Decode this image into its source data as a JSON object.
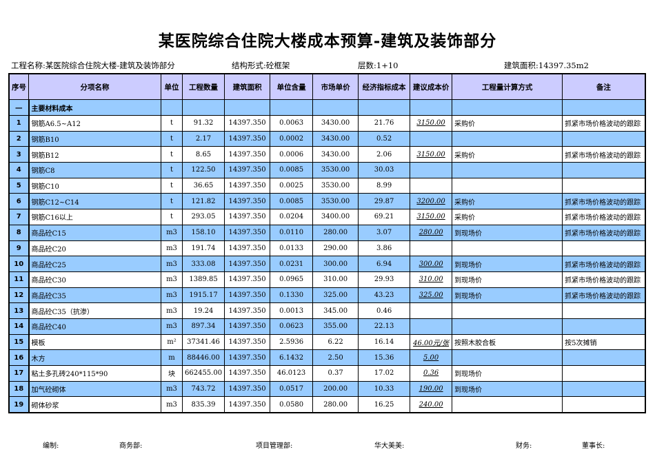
{
  "title": "某医院综合住院大楼成本预算-建筑及装饰部分",
  "info": {
    "project": "工程名称:某医院综合住院大楼-建筑及装饰部分",
    "structure": "结构形式:砼框架",
    "floors": "层数:1+10",
    "area": "建筑面积:14397.35m2"
  },
  "columns": [
    "序号",
    "分项名称",
    "单位",
    "工程数量",
    "建筑面积",
    "单位含量",
    "市场单价",
    "经济指标成本",
    "建议成本价",
    "工程量计算方式",
    "备注"
  ],
  "section": {
    "seq": "一",
    "name": "主要材料成本"
  },
  "rows": [
    {
      "seq": "1",
      "name": "钢筋A6.5~A12",
      "unit": "t",
      "qty": "91.32",
      "area": "14397.350",
      "content": "0.0063",
      "price": "3430.00",
      "index": "21.76",
      "suggest": "3150.00",
      "method": "采购价",
      "note": "抓紧市场价格波动的跟踪"
    },
    {
      "seq": "2",
      "name": "钢筋B10",
      "unit": "t",
      "qty": "2.17",
      "area": "14397.350",
      "content": "0.0002",
      "price": "3430.00",
      "index": "0.52",
      "suggest": "",
      "method": "",
      "note": ""
    },
    {
      "seq": "3",
      "name": "钢筋B12",
      "unit": "t",
      "qty": "8.65",
      "area": "14397.350",
      "content": "0.0006",
      "price": "3430.00",
      "index": "2.06",
      "suggest": "3150.00",
      "method": "采购价",
      "note": "抓紧市场价格波动的跟踪"
    },
    {
      "seq": "4",
      "name": "钢筋C8",
      "unit": "t",
      "qty": "122.50",
      "area": "14397.350",
      "content": "0.0085",
      "price": "3530.00",
      "index": "30.03",
      "suggest": "",
      "method": "",
      "note": ""
    },
    {
      "seq": "5",
      "name": "钢筋C10",
      "unit": "t",
      "qty": "36.65",
      "area": "14397.350",
      "content": "0.0025",
      "price": "3530.00",
      "index": "8.99",
      "suggest": "",
      "method": "",
      "note": ""
    },
    {
      "seq": "6",
      "name": "钢筋C12~C14",
      "unit": "t",
      "qty": "121.82",
      "area": "14397.350",
      "content": "0.0085",
      "price": "3530.00",
      "index": "29.87",
      "suggest": "3200.00",
      "method": "采购价",
      "note": "抓紧市场价格波动的跟踪"
    },
    {
      "seq": "7",
      "name": "钢筋C16以上",
      "unit": "t",
      "qty": "293.05",
      "area": "14397.350",
      "content": "0.0204",
      "price": "3400.00",
      "index": "69.21",
      "suggest": "3150.00",
      "method": "采购价",
      "note": "抓紧市场价格波动的跟踪"
    },
    {
      "seq": "8",
      "name": "商品砼C15",
      "unit": "m3",
      "qty": "158.10",
      "area": "14397.350",
      "content": "0.0110",
      "price": "280.00",
      "index": "3.07",
      "suggest": "280.00",
      "method": "到现场价",
      "note": "抓紧市场价格波动的跟踪"
    },
    {
      "seq": "9",
      "name": "商品砼C20",
      "unit": "m3",
      "qty": "191.74",
      "area": "14397.350",
      "content": "0.0133",
      "price": "290.00",
      "index": "3.86",
      "suggest": "",
      "method": "",
      "note": ""
    },
    {
      "seq": "10",
      "name": "商品砼C25",
      "unit": "m3",
      "qty": "333.08",
      "area": "14397.350",
      "content": "0.0231",
      "price": "300.00",
      "index": "6.94",
      "suggest": "300.00",
      "method": "到现场价",
      "note": "抓紧市场价格波动的跟踪"
    },
    {
      "seq": "11",
      "name": "商品砼C30",
      "unit": "m3",
      "qty": "1389.85",
      "area": "14397.350",
      "content": "0.0965",
      "price": "310.00",
      "index": "29.93",
      "suggest": "310.00",
      "method": "到现场价",
      "note": "抓紧市场价格波动的跟踪"
    },
    {
      "seq": "12",
      "name": "商品砼C35",
      "unit": "m3",
      "qty": "1915.17",
      "area": "14397.350",
      "content": "0.1330",
      "price": "325.00",
      "index": "43.23",
      "suggest": "325.00",
      "method": "到现场价",
      "note": "抓紧市场价格波动的跟踪"
    },
    {
      "seq": "13",
      "name": "商品砼C35（抗渗）",
      "unit": "m3",
      "qty": "19.24",
      "area": "14397.350",
      "content": "0.0013",
      "price": "345.00",
      "index": "0.46",
      "suggest": "",
      "method": "",
      "note": ""
    },
    {
      "seq": "14",
      "name": "商品砼C40",
      "unit": "m3",
      "qty": "897.34",
      "area": "14397.350",
      "content": "0.0623",
      "price": "355.00",
      "index": "22.13",
      "suggest": "",
      "method": "",
      "note": ""
    },
    {
      "seq": "15",
      "name": "模板",
      "unit": "m²",
      "qty": "37341.46",
      "area": "14397.350",
      "content": "2.5936",
      "price": "6.22",
      "index": "16.14",
      "suggest": "46.00元/张",
      "method": "按照木胶合板",
      "note": "按5次摊销"
    },
    {
      "seq": "16",
      "name": "木方",
      "unit": "m",
      "qty": "88446.00",
      "area": "14397.350",
      "content": "6.1432",
      "price": "2.50",
      "index": "15.36",
      "suggest": "5.00",
      "method": "",
      "note": ""
    },
    {
      "seq": "17",
      "name": "粘土多孔砖240*115*90",
      "unit": "块",
      "qty": "662455.00",
      "area": "14397.350",
      "content": "46.0123",
      "price": "0.37",
      "index": "17.02",
      "suggest": "0.36",
      "method": "到现场价",
      "note": ""
    },
    {
      "seq": "18",
      "name": "加气砼砌体",
      "unit": "m3",
      "qty": "743.72",
      "area": "14397.350",
      "content": "0.0517",
      "price": "200.00",
      "index": "10.33",
      "suggest": "190.00",
      "method": "到现场价",
      "note": ""
    },
    {
      "seq": "19",
      "name": "砌体砂浆",
      "unit": "m3",
      "qty": "835.39",
      "area": "14397.350",
      "content": "0.0580",
      "price": "280.00",
      "index": "16.25",
      "suggest": "240.00",
      "method": "",
      "note": ""
    }
  ],
  "footer": [
    "编制:",
    "商务部:",
    "项目管理部:",
    "华大美美:",
    "财务:",
    "董事长:"
  ],
  "colors": {
    "header_bg": "#ccccff",
    "row_blue": "#99ccff"
  }
}
